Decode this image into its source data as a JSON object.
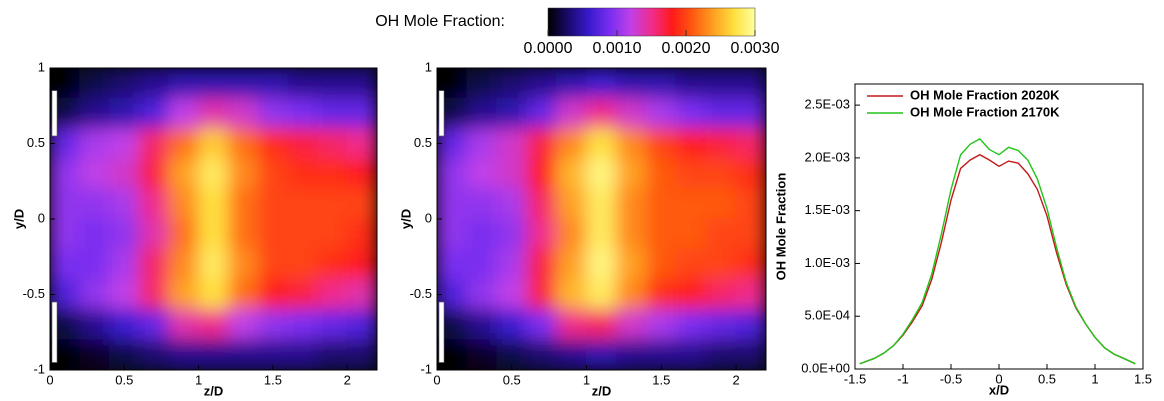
{
  "colorbar": {
    "title": "OH Mole Fraction:",
    "lim": [
      0,
      0.003
    ],
    "ticks": [
      {
        "value": 0,
        "label": "0.0000"
      },
      {
        "value": 0.001,
        "label": "0.0010"
      },
      {
        "value": 0.002,
        "label": "0.0020"
      },
      {
        "value": 0.003,
        "label": "0.0030"
      }
    ],
    "colors": [
      "#000000",
      "#1a0a6e",
      "#3a1ad0",
      "#7a2ef0",
      "#c040e8",
      "#f02c8c",
      "#ff1a1a",
      "#ff5a10",
      "#ffa020",
      "#ffe040",
      "#ffffa0"
    ]
  },
  "chart_data": [
    {
      "type": "heatmap",
      "xlabel": "z/D",
      "ylabel": "y/D",
      "xlim": [
        0,
        2.2
      ],
      "ylim": [
        -1,
        1
      ],
      "xticks": [
        0,
        0.5,
        1,
        1.5,
        2
      ],
      "yticks": [
        -1,
        -0.5,
        0,
        0.5,
        1
      ],
      "x": [
        0.1,
        0.3,
        0.5,
        0.7,
        0.9,
        1.1,
        1.3,
        1.5,
        1.7,
        1.9,
        2.1
      ],
      "y": [
        0.9,
        0.7,
        0.5,
        0.3,
        0.1,
        -0.1,
        -0.3,
        -0.5,
        -0.7,
        -0.9
      ],
      "values": [
        [
          0.0,
          0.0002,
          0.0003,
          0.0004,
          0.0005,
          0.0005,
          0.0005,
          0.0005,
          0.0004,
          0.0004,
          0.0004
        ],
        [
          0.0002,
          0.0004,
          0.0005,
          0.0007,
          0.0012,
          0.0014,
          0.0013,
          0.001,
          0.0009,
          0.0008,
          0.0008
        ],
        [
          0.0008,
          0.0011,
          0.0012,
          0.0016,
          0.0022,
          0.0026,
          0.0022,
          0.0019,
          0.0017,
          0.0016,
          0.0015
        ],
        [
          0.001,
          0.0012,
          0.0013,
          0.0017,
          0.0024,
          0.0028,
          0.0023,
          0.002,
          0.0019,
          0.0019,
          0.0018
        ],
        [
          0.001,
          0.001,
          0.0011,
          0.0015,
          0.0023,
          0.0027,
          0.0022,
          0.002,
          0.002,
          0.002,
          0.002
        ],
        [
          0.001,
          0.0009,
          0.001,
          0.0014,
          0.0022,
          0.0027,
          0.0022,
          0.002,
          0.002,
          0.002,
          0.0019
        ],
        [
          0.0009,
          0.0009,
          0.0011,
          0.0016,
          0.0023,
          0.0028,
          0.0023,
          0.002,
          0.002,
          0.0019,
          0.0018
        ],
        [
          0.0007,
          0.001,
          0.0012,
          0.0016,
          0.0024,
          0.0027,
          0.0022,
          0.0018,
          0.0017,
          0.0015,
          0.0014
        ],
        [
          0.0002,
          0.0004,
          0.0006,
          0.0008,
          0.0014,
          0.0015,
          0.0012,
          0.001,
          0.0009,
          0.0008,
          0.0007
        ],
        [
          0.0,
          0.0001,
          0.0002,
          0.0003,
          0.0004,
          0.0004,
          0.0004,
          0.0004,
          0.0004,
          0.0003,
          0.0003
        ]
      ]
    },
    {
      "type": "heatmap",
      "xlabel": "z/D",
      "ylabel": "y/D",
      "xlim": [
        0,
        2.2
      ],
      "ylim": [
        -1,
        1
      ],
      "xticks": [
        0,
        0.5,
        1,
        1.5,
        2
      ],
      "yticks": [
        -1,
        -0.5,
        0,
        0.5,
        1
      ],
      "x": [
        0.1,
        0.3,
        0.5,
        0.7,
        0.9,
        1.1,
        1.3,
        1.5,
        1.7,
        1.9,
        2.1
      ],
      "y": [
        0.9,
        0.7,
        0.5,
        0.3,
        0.1,
        -0.1,
        -0.3,
        -0.5,
        -0.7,
        -0.9
      ],
      "values": [
        [
          0.0,
          0.0002,
          0.0003,
          0.0004,
          0.0005,
          0.0006,
          0.0005,
          0.0005,
          0.0004,
          0.0004,
          0.0004
        ],
        [
          0.0002,
          0.0004,
          0.0005,
          0.0008,
          0.0013,
          0.0015,
          0.0013,
          0.0011,
          0.0009,
          0.0008,
          0.0008
        ],
        [
          0.0008,
          0.0011,
          0.0013,
          0.0017,
          0.0023,
          0.0027,
          0.0023,
          0.002,
          0.0018,
          0.0017,
          0.0016
        ],
        [
          0.001,
          0.0012,
          0.0013,
          0.0018,
          0.0025,
          0.0029,
          0.0024,
          0.0021,
          0.002,
          0.002,
          0.0019
        ],
        [
          0.001,
          0.001,
          0.0011,
          0.0016,
          0.0024,
          0.0028,
          0.0023,
          0.0021,
          0.0021,
          0.0021,
          0.002
        ],
        [
          0.001,
          0.0009,
          0.001,
          0.0015,
          0.0023,
          0.0028,
          0.0023,
          0.0021,
          0.0021,
          0.002,
          0.002
        ],
        [
          0.0009,
          0.0009,
          0.0011,
          0.0017,
          0.0024,
          0.0029,
          0.0024,
          0.0021,
          0.002,
          0.002,
          0.0019
        ],
        [
          0.0007,
          0.001,
          0.0012,
          0.0017,
          0.0025,
          0.0028,
          0.0023,
          0.0019,
          0.0018,
          0.0016,
          0.0015
        ],
        [
          0.0002,
          0.0004,
          0.0006,
          0.0009,
          0.0015,
          0.0016,
          0.0013,
          0.0011,
          0.0009,
          0.0008,
          0.0007
        ],
        [
          0.0,
          0.0001,
          0.0002,
          0.0003,
          0.0004,
          0.0005,
          0.0004,
          0.0004,
          0.0004,
          0.0003,
          0.0003
        ]
      ]
    },
    {
      "type": "line",
      "xlabel": "x/D",
      "ylabel": "OH Mole Fraction",
      "legend": "upper left",
      "xlim": [
        -1.5,
        1.5
      ],
      "ylim": [
        0,
        0.0027
      ],
      "xticks": [
        -1.5,
        -1,
        -0.5,
        0,
        0.5,
        1,
        1.5
      ],
      "yticks": [
        {
          "value": 0,
          "label": "0.0E+00"
        },
        {
          "value": 0.0005,
          "label": "5.0E-04"
        },
        {
          "value": 0.001,
          "label": "1.0E-03"
        },
        {
          "value": 0.0015,
          "label": "1.5E-03"
        },
        {
          "value": 0.002,
          "label": "2.0E-03"
        },
        {
          "value": 0.0025,
          "label": "2.5E-03"
        }
      ],
      "x": [
        -1.45,
        -1.3,
        -1.2,
        -1.1,
        -1.0,
        -0.9,
        -0.8,
        -0.7,
        -0.6,
        -0.5,
        -0.4,
        -0.3,
        -0.2,
        -0.1,
        0,
        0.1,
        0.2,
        0.3,
        0.4,
        0.5,
        0.6,
        0.7,
        0.8,
        0.9,
        1.0,
        1.1,
        1.2,
        1.3,
        1.42
      ],
      "series": [
        {
          "name": "OH Mole Fraction 2020K",
          "color": "#c41a1a",
          "values": [
            5e-05,
            0.0001,
            0.00015,
            0.00022,
            0.00032,
            0.00045,
            0.0006,
            0.00085,
            0.0012,
            0.0016,
            0.0019,
            0.00198,
            0.00203,
            0.00198,
            0.00192,
            0.00197,
            0.00195,
            0.00185,
            0.0017,
            0.00145,
            0.0011,
            0.0008,
            0.00058,
            0.00043,
            0.0003,
            0.0002,
            0.00014,
            0.0001,
            5e-05
          ]
        },
        {
          "name": "OH Mole Fraction 2170K",
          "color": "#22c41a",
          "values": [
            5e-05,
            0.0001,
            0.00015,
            0.00022,
            0.00033,
            0.00047,
            0.00063,
            0.0009,
            0.00128,
            0.0017,
            0.00203,
            0.00213,
            0.00218,
            0.00208,
            0.00203,
            0.0021,
            0.00207,
            0.00198,
            0.0018,
            0.00152,
            0.00115,
            0.00082,
            0.00059,
            0.00043,
            0.0003,
            0.0002,
            0.00014,
            0.0001,
            5e-05
          ]
        }
      ]
    }
  ]
}
